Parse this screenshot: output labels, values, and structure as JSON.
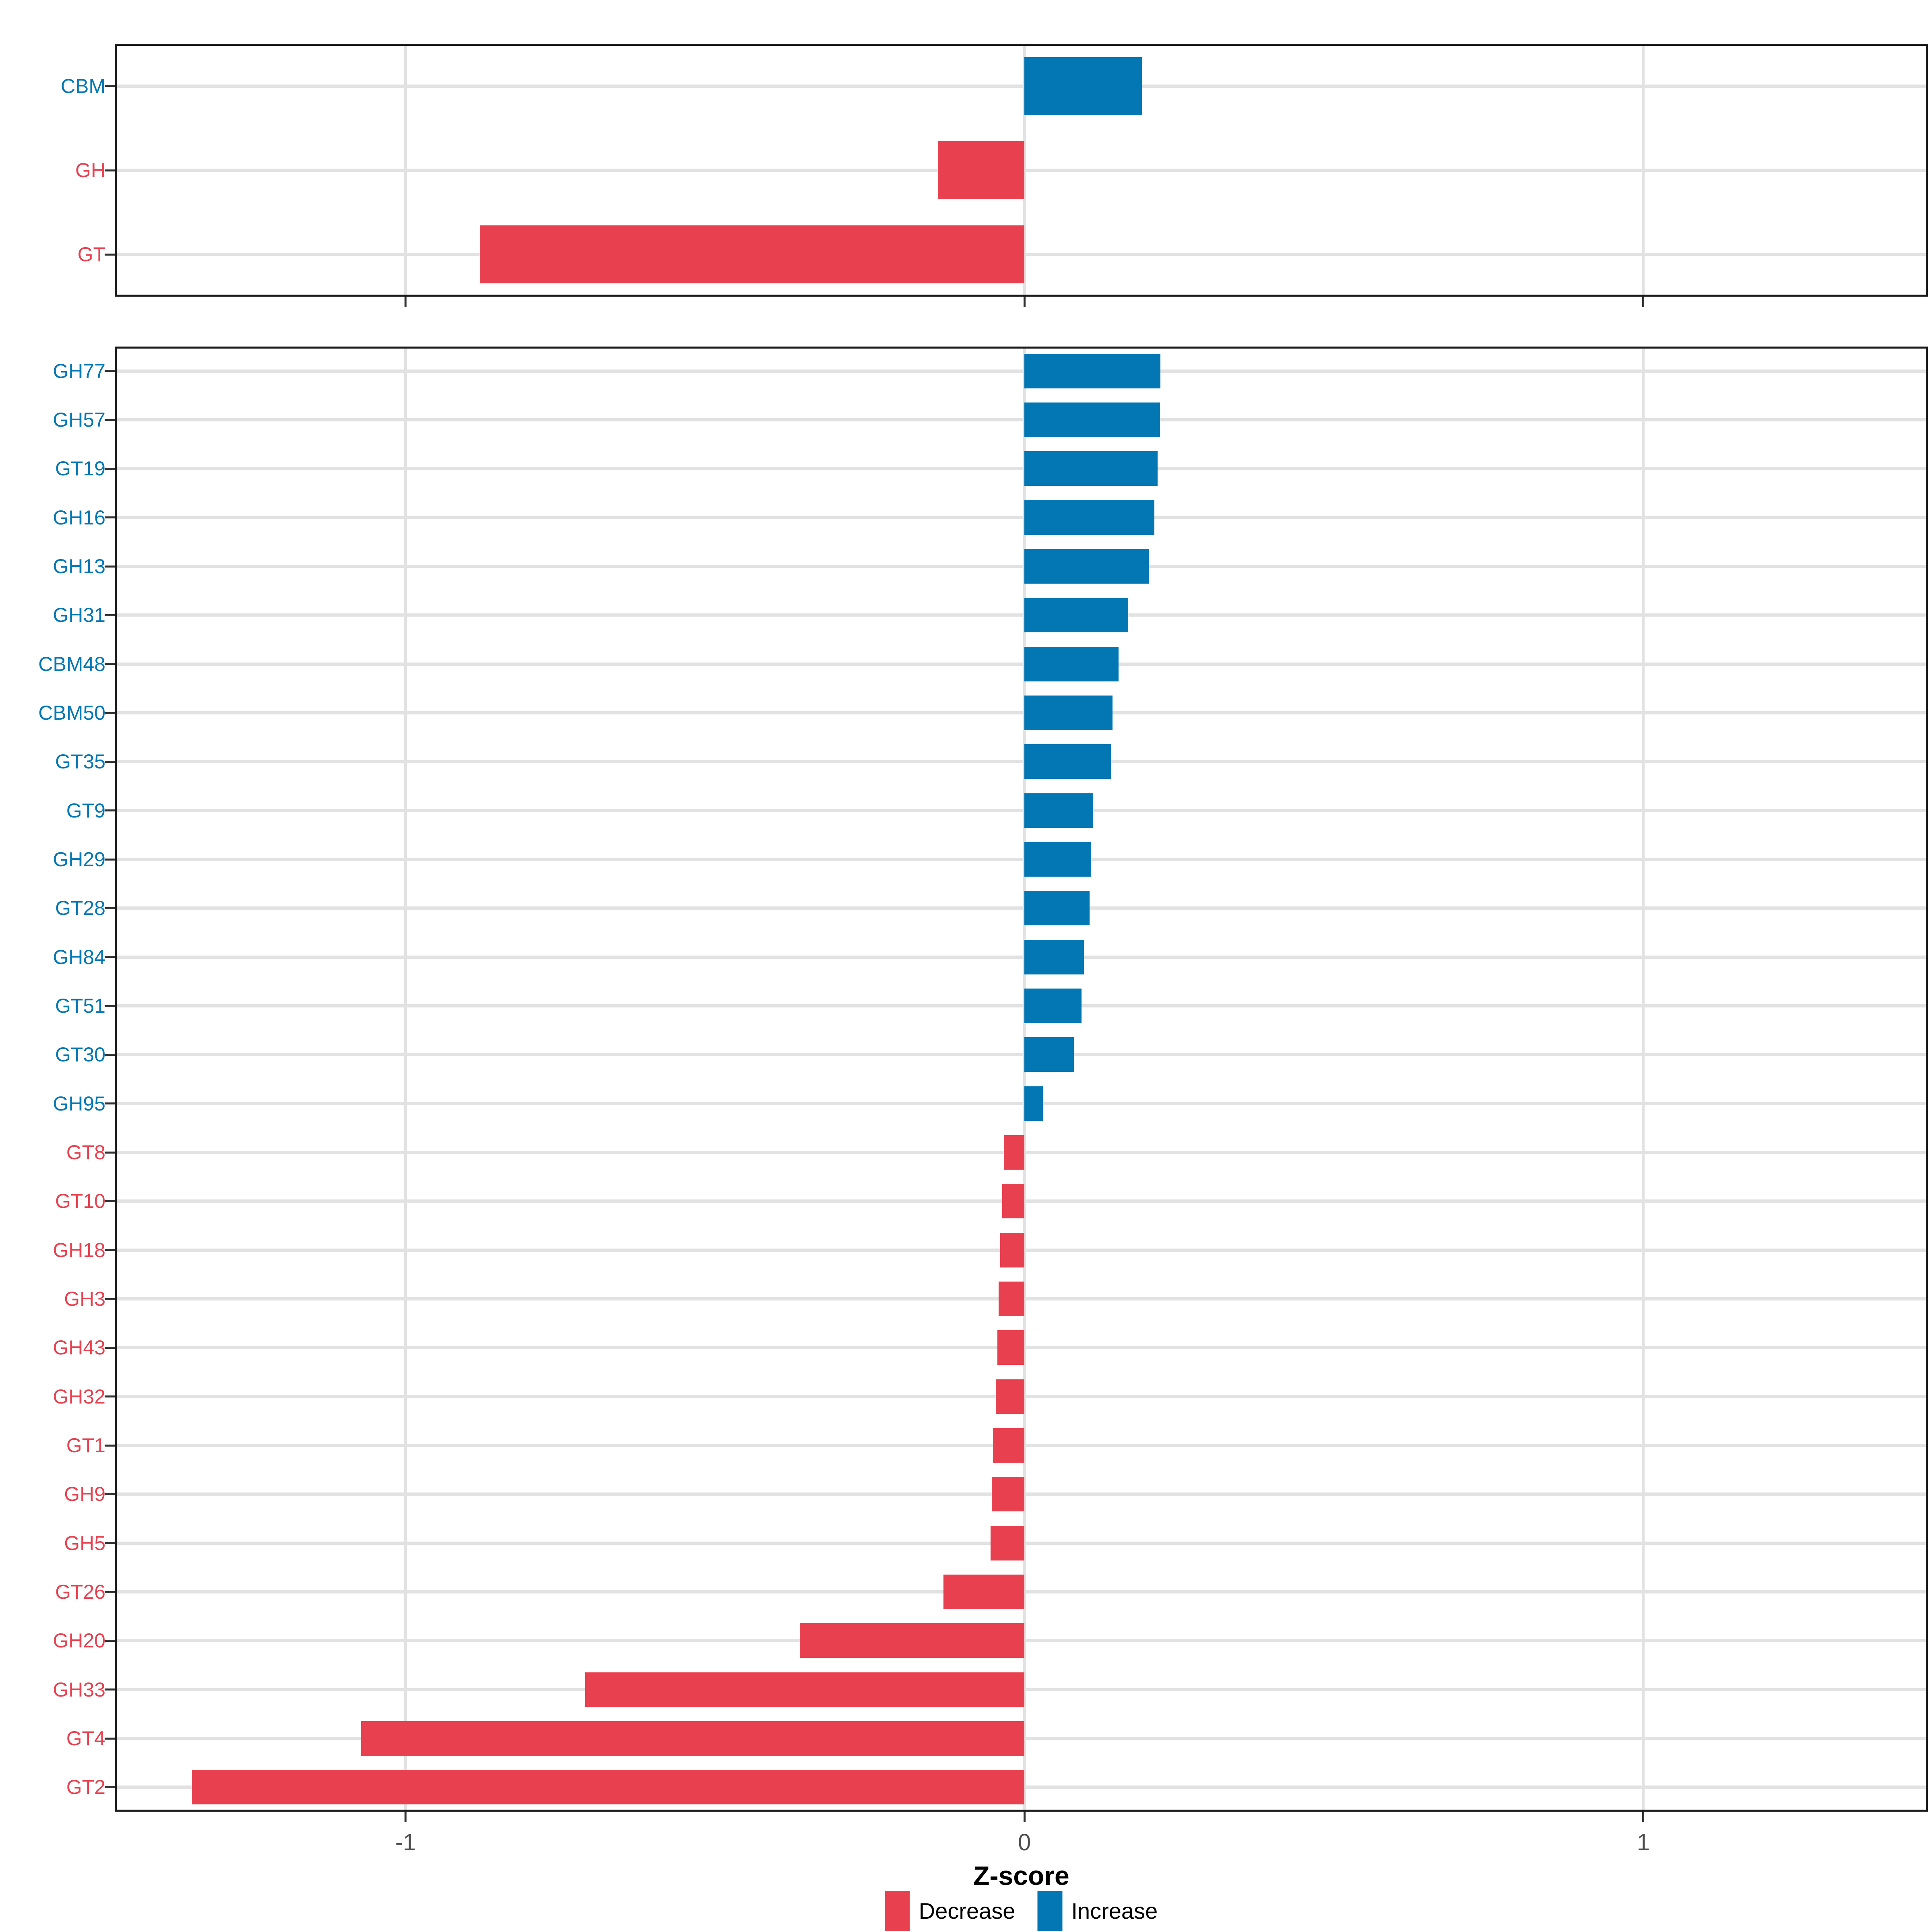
{
  "figure": {
    "axis_title": "Z-score",
    "x_tick_labels": [
      "-1",
      "0",
      "1"
    ],
    "x_tick_values": [
      -1,
      0,
      1
    ],
    "x_range": [
      -1.47,
      1.46
    ]
  },
  "legend": {
    "items": [
      {
        "label": "Decrease",
        "color": "#E8404F"
      },
      {
        "label": "Increase",
        "color": "#0277B4"
      }
    ]
  },
  "colors": {
    "decrease": "#E8404F",
    "increase": "#0277B4",
    "grid": "#E2E2E2",
    "panel_border": "#1A1A1A",
    "tick": "#333333",
    "tick_label": "#4D4D4D",
    "background": "#FFFFFF"
  },
  "chart_data": [
    {
      "type": "bar",
      "orientation": "horizontal",
      "panel": "overview",
      "title": "",
      "xlabel": "Z-score",
      "ylabel": "",
      "xlim": [
        -1.47,
        1.46
      ],
      "x_ticks": [
        -1,
        0,
        1
      ],
      "grid": "on",
      "legend_position": "bottom",
      "categories": [
        "CBM",
        "GH",
        "GT"
      ],
      "values": [
        0.19,
        -0.14,
        -0.88
      ],
      "directions": [
        "Increase",
        "Decrease",
        "Decrease"
      ]
    },
    {
      "type": "bar",
      "orientation": "horizontal",
      "panel": "families",
      "title": "",
      "xlabel": "Z-score",
      "ylabel": "",
      "xlim": [
        -1.47,
        1.46
      ],
      "x_ticks": [
        -1,
        0,
        1
      ],
      "grid": "on",
      "legend_position": "bottom",
      "categories": [
        "GH77",
        "GH57",
        "GT19",
        "GH16",
        "GH13",
        "GH31",
        "CBM48",
        "CBM50",
        "GT35",
        "GT9",
        "GH29",
        "GT28",
        "GH84",
        "GT51",
        "GT30",
        "GH95",
        "GT8",
        "GT10",
        "GH18",
        "GH3",
        "GH43",
        "GH32",
        "GT1",
        "GH9",
        "GH5",
        "GT26",
        "GH20",
        "GH33",
        "GT4",
        "GT2"
      ],
      "values": [
        0.22,
        0.219,
        0.215,
        0.21,
        0.201,
        0.168,
        0.152,
        0.142,
        0.14,
        0.111,
        0.108,
        0.105,
        0.096,
        0.092,
        0.08,
        0.03,
        -0.033,
        -0.036,
        -0.039,
        -0.042,
        -0.044,
        -0.046,
        -0.051,
        -0.053,
        -0.055,
        -0.131,
        -0.363,
        -0.71,
        -1.072,
        -1.345
      ],
      "directions": [
        "Increase",
        "Increase",
        "Increase",
        "Increase",
        "Increase",
        "Increase",
        "Increase",
        "Increase",
        "Increase",
        "Increase",
        "Increase",
        "Increase",
        "Increase",
        "Increase",
        "Increase",
        "Increase",
        "Decrease",
        "Decrease",
        "Decrease",
        "Decrease",
        "Decrease",
        "Decrease",
        "Decrease",
        "Decrease",
        "Decrease",
        "Decrease",
        "Decrease",
        "Decrease",
        "Decrease",
        "Decrease"
      ]
    }
  ]
}
